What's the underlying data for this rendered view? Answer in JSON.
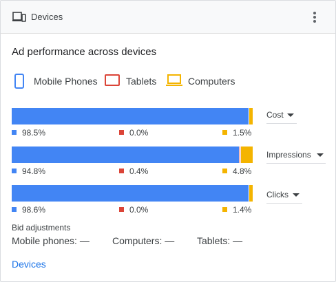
{
  "header": {
    "title": "Devices",
    "icon": "devices-icon",
    "menu_icon": "more-vert-icon"
  },
  "section_title": "Ad performance across devices",
  "legend": [
    {
      "label": "Mobile Phones",
      "color": "#4285f4",
      "icon": "smartphone-icon"
    },
    {
      "label": "Tablets",
      "color": "#db4437",
      "icon": "tablet-icon"
    },
    {
      "label": "Computers",
      "color": "#f4b400",
      "icon": "laptop-icon"
    }
  ],
  "metrics": [
    {
      "name": "Cost",
      "shares": [
        98.5,
        0.0,
        1.5
      ],
      "labels": [
        "98.5%",
        "0.0%",
        "1.5%"
      ]
    },
    {
      "name": "Impressions",
      "shares": [
        94.8,
        0.4,
        4.8
      ],
      "labels": [
        "94.8%",
        "0.4%",
        "4.8%"
      ]
    },
    {
      "name": "Clicks",
      "shares": [
        98.6,
        0.0,
        1.4
      ],
      "labels": [
        "98.6%",
        "0.0%",
        "1.4%"
      ]
    }
  ],
  "bid_adjustments": {
    "title": "Bid adjustments",
    "mobile": "Mobile phones: —",
    "computers": "Computers: —",
    "tablets": "Tablets: —"
  },
  "footer_link": "Devices"
}
